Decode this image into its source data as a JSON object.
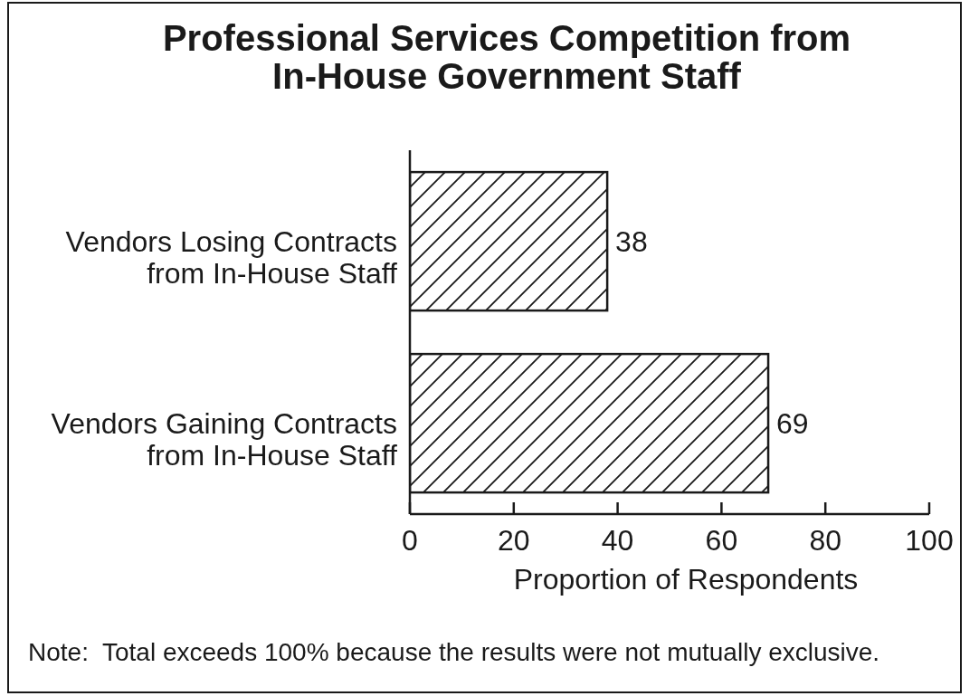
{
  "chart_data": {
    "type": "bar",
    "orientation": "horizontal",
    "title": "Professional Services Competition from\nIn-House Government Staff",
    "xlabel": "Proportion of Respondents",
    "categories": [
      "Vendors Losing Contracts\nfrom In-House Staff",
      "Vendors Gaining Contracts\nfrom In-House Staff"
    ],
    "values": [
      38,
      69
    ],
    "color": "#1a1a1a",
    "xlim": [
      0,
      100
    ],
    "xticks": [
      0,
      20,
      40,
      60,
      80,
      100
    ],
    "data_labels": true,
    "annotations": [
      "Note:  Total exceeds 100% because the results were not mutually exclusive."
    ]
  }
}
